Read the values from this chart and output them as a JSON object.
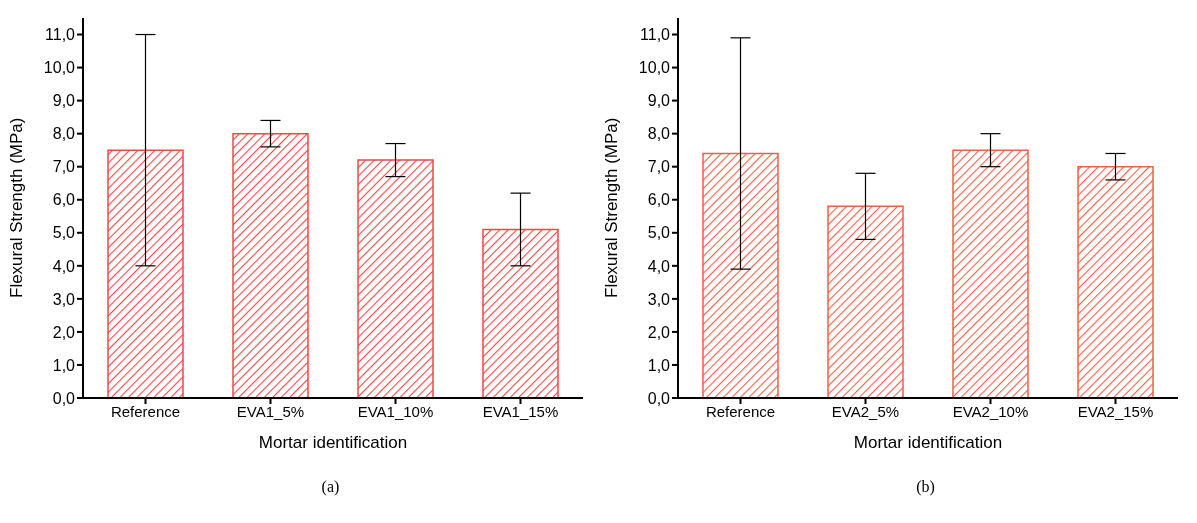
{
  "chart_data": [
    {
      "type": "bar",
      "xlabel": "Mortar identification",
      "ylabel": "Flexural Strength (MPa)",
      "categories": [
        "Reference",
        "EVA1_5%",
        "EVA1_10%",
        "EVA1_15%"
      ],
      "values": [
        7.5,
        8.0,
        7.2,
        5.1
      ],
      "errors": [
        [
          4.0,
          11.0
        ],
        [
          7.6,
          8.4
        ],
        [
          6.7,
          7.7
        ],
        [
          4.0,
          6.2
        ]
      ],
      "color": "#f04848",
      "ylim": [
        0,
        11.5
      ],
      "yticks": [
        {
          "value": 0,
          "label": "0,0"
        },
        {
          "value": 1,
          "label": "1,0"
        },
        {
          "value": 2,
          "label": "2,0"
        },
        {
          "value": 3,
          "label": "3,0"
        },
        {
          "value": 4,
          "label": "4,0"
        },
        {
          "value": 5,
          "label": "5,0"
        },
        {
          "value": 6,
          "label": "6,0"
        },
        {
          "value": 7,
          "label": "7,0"
        },
        {
          "value": 8,
          "label": "8,0"
        },
        {
          "value": 9,
          "label": "9,0"
        },
        {
          "value": 10,
          "label": "10,0"
        },
        {
          "value": 11,
          "label": "11,0"
        }
      ],
      "grid": false,
      "legend": false,
      "annotations": [
        "(a)"
      ]
    },
    {
      "type": "bar",
      "xlabel": "Mortar identification",
      "ylabel": "Flexural Strength (MPa)",
      "categories": [
        "Reference",
        "EVA2_5%",
        "EVA2_10%",
        "EVA2_15%"
      ],
      "values": [
        7.4,
        5.8,
        7.5,
        7.0
      ],
      "errors": [
        [
          3.9,
          10.9
        ],
        [
          4.8,
          6.8
        ],
        [
          7.0,
          8.0
        ],
        [
          6.6,
          7.4
        ]
      ],
      "color": "#f06048",
      "ylim": [
        0,
        11.5
      ],
      "yticks": [
        {
          "value": 0,
          "label": "0,0"
        },
        {
          "value": 1,
          "label": "1,0"
        },
        {
          "value": 2,
          "label": "2,0"
        },
        {
          "value": 3,
          "label": "3,0"
        },
        {
          "value": 4,
          "label": "4,0"
        },
        {
          "value": 5,
          "label": "5,0"
        },
        {
          "value": 6,
          "label": "6,0"
        },
        {
          "value": 7,
          "label": "7,0"
        },
        {
          "value": 8,
          "label": "8,0"
        },
        {
          "value": 9,
          "label": "9,0"
        },
        {
          "value": 10,
          "label": "10,0"
        },
        {
          "value": 11,
          "label": "11,0"
        }
      ],
      "grid": false,
      "legend": false,
      "annotations": [
        "(b)"
      ]
    }
  ]
}
